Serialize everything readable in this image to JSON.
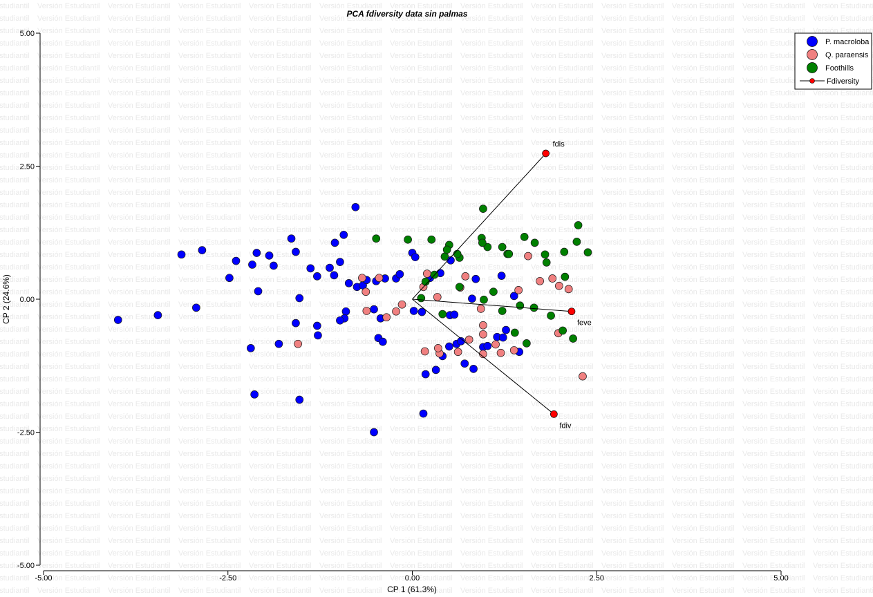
{
  "watermark_text": "Versión Estudiantil",
  "chart_data": {
    "type": "scatter",
    "title": "PCA fdiversity data sin palmas",
    "xlabel": "CP 1 (61.3%)",
    "ylabel": "CP 2 (24.6%)",
    "xlim": [
      -5,
      5
    ],
    "ylim": [
      -5,
      5
    ],
    "x_ticks": [
      -5,
      -2.5,
      0,
      2.5,
      5
    ],
    "y_ticks": [
      -5,
      -2.5,
      0,
      2.5,
      5
    ],
    "x_tick_labels": [
      "-5.00",
      "-2.50",
      "0.00",
      "2.50",
      "5.00"
    ],
    "y_tick_labels": [
      "-5.00",
      "-2.50",
      "0.00",
      "2.50",
      "5.00"
    ],
    "grid": false,
    "legend_position": "top-right",
    "series": [
      {
        "name": "P. macroloba",
        "color": "#0000ff",
        "points": [
          [
            -3.99,
            -0.39
          ],
          [
            -3.45,
            -0.3
          ],
          [
            -2.93,
            -0.16
          ],
          [
            -3.13,
            0.84
          ],
          [
            -2.85,
            0.92
          ],
          [
            -2.48,
            0.4
          ],
          [
            -2.39,
            0.72
          ],
          [
            -2.17,
            0.65
          ],
          [
            -2.11,
            0.87
          ],
          [
            -2.09,
            0.15
          ],
          [
            -1.88,
            0.63
          ],
          [
            -1.94,
            0.82
          ],
          [
            -1.64,
            1.14
          ],
          [
            -1.58,
            0.89
          ],
          [
            -1.53,
            0.02
          ],
          [
            -1.38,
            0.58
          ],
          [
            -1.29,
            0.43
          ],
          [
            -1.06,
            0.45
          ],
          [
            -1.12,
            0.59
          ],
          [
            -1.05,
            1.06
          ],
          [
            -0.93,
            1.21
          ],
          [
            -0.77,
            1.73
          ],
          [
            -0.98,
            0.7
          ],
          [
            -0.86,
            0.3
          ],
          [
            -0.75,
            0.23
          ],
          [
            -0.67,
            0.26
          ],
          [
            -0.62,
            0.36
          ],
          [
            -0.49,
            0.34
          ],
          [
            -0.37,
            0.39
          ],
          [
            -0.22,
            0.39
          ],
          [
            -0.17,
            0.47
          ],
          [
            0.0,
            0.87
          ],
          [
            0.04,
            0.79
          ],
          [
            0.24,
            0.4
          ],
          [
            0.38,
            0.49
          ],
          [
            0.02,
            -0.22
          ],
          [
            0.13,
            -0.24
          ],
          [
            -0.52,
            -0.19
          ],
          [
            -0.9,
            -0.23
          ],
          [
            -0.92,
            -0.36
          ],
          [
            -0.98,
            -0.4
          ],
          [
            -0.43,
            -0.36
          ],
          [
            -0.46,
            -0.73
          ],
          [
            -0.4,
            -0.8
          ],
          [
            -1.29,
            -0.5
          ],
          [
            -1.28,
            -0.68
          ],
          [
            -1.81,
            -0.84
          ],
          [
            -2.19,
            -0.92
          ],
          [
            -1.58,
            -0.45
          ],
          [
            -2.14,
            -1.79
          ],
          [
            -1.53,
            -1.89
          ],
          [
            -0.52,
            -2.5
          ],
          [
            0.15,
            -2.15
          ],
          [
            0.18,
            -1.41
          ],
          [
            0.32,
            -1.33
          ],
          [
            0.41,
            -1.07
          ],
          [
            0.5,
            -0.89
          ],
          [
            0.6,
            -0.84
          ],
          [
            0.66,
            -0.79
          ],
          [
            0.71,
            -1.21
          ],
          [
            0.83,
            -1.31
          ],
          [
            0.96,
            -0.9
          ],
          [
            1.02,
            -0.88
          ],
          [
            1.15,
            -0.71
          ],
          [
            1.23,
            -0.72
          ],
          [
            1.27,
            -0.58
          ],
          [
            1.45,
            -0.99
          ],
          [
            0.51,
            -0.3
          ],
          [
            0.57,
            -0.29
          ],
          [
            0.81,
            0.01
          ],
          [
            0.86,
            0.38
          ],
          [
            1.21,
            0.44
          ],
          [
            1.38,
            0.06
          ],
          [
            0.52,
            0.73
          ]
        ]
      },
      {
        "name": "Q. paraensis",
        "color": "#f08080",
        "points": [
          [
            -1.55,
            -0.84
          ],
          [
            -0.62,
            -0.22
          ],
          [
            -0.63,
            0.14
          ],
          [
            -0.68,
            0.4
          ],
          [
            -0.45,
            0.4
          ],
          [
            -0.35,
            -0.34
          ],
          [
            -0.22,
            -0.23
          ],
          [
            -0.14,
            -0.1
          ],
          [
            0.15,
            0.23
          ],
          [
            0.2,
            0.48
          ],
          [
            0.34,
            0.04
          ],
          [
            0.65,
            0.22
          ],
          [
            0.72,
            0.43
          ],
          [
            0.93,
            -0.18
          ],
          [
            0.96,
            -0.49
          ],
          [
            0.96,
            -0.66
          ],
          [
            0.96,
            -1.03
          ],
          [
            0.77,
            -0.76
          ],
          [
            1.13,
            -0.85
          ],
          [
            1.2,
            -1.01
          ],
          [
            1.38,
            -0.96
          ],
          [
            1.44,
            0.17
          ],
          [
            1.57,
            0.81
          ],
          [
            1.73,
            0.34
          ],
          [
            1.9,
            0.39
          ],
          [
            1.99,
            0.25
          ],
          [
            2.12,
            0.19
          ],
          [
            1.98,
            -0.64
          ],
          [
            2.31,
            -1.45
          ],
          [
            0.37,
            -1.02
          ],
          [
            0.62,
            -0.99
          ],
          [
            0.35,
            -0.92
          ],
          [
            0.17,
            -0.98
          ]
        ]
      },
      {
        "name": "Foothills",
        "color": "#008000",
        "points": [
          [
            -0.49,
            1.14
          ],
          [
            -0.06,
            1.12
          ],
          [
            0.26,
            1.12
          ],
          [
            0.44,
            0.8
          ],
          [
            0.5,
            1.02
          ],
          [
            0.96,
            1.7
          ],
          [
            0.94,
            1.15
          ],
          [
            1.22,
            0.98
          ],
          [
            1.29,
            0.85
          ],
          [
            1.31,
            0.85
          ],
          [
            1.02,
            0.98
          ],
          [
            0.47,
            0.93
          ],
          [
            0.64,
            0.23
          ],
          [
            0.64,
            0.78
          ],
          [
            0.61,
            0.85
          ],
          [
            0.95,
            1.06
          ],
          [
            1.52,
            1.17
          ],
          [
            1.66,
            1.06
          ],
          [
            1.8,
            0.84
          ],
          [
            1.82,
            0.69
          ],
          [
            2.06,
            0.89
          ],
          [
            2.07,
            0.42
          ],
          [
            2.23,
            1.08
          ],
          [
            2.25,
            1.39
          ],
          [
            2.38,
            0.88
          ],
          [
            1.46,
            -0.12
          ],
          [
            1.1,
            0.14
          ],
          [
            1.22,
            -0.22
          ],
          [
            1.39,
            -0.63
          ],
          [
            1.55,
            -0.83
          ],
          [
            2.04,
            -0.59
          ],
          [
            2.18,
            -0.74
          ],
          [
            1.65,
            -0.16
          ],
          [
            1.88,
            -0.31
          ],
          [
            0.97,
            -0.01
          ],
          [
            0.41,
            -0.28
          ],
          [
            0.12,
            0.02
          ],
          [
            0.18,
            0.33
          ],
          [
            0.3,
            0.46
          ]
        ]
      }
    ],
    "vectors": {
      "name": "Fdiversity",
      "color": "#ff0000",
      "items": [
        {
          "label": "fdis",
          "x": 1.81,
          "y": 2.74
        },
        {
          "label": "feve",
          "x": 2.16,
          "y": -0.23
        },
        {
          "label": "fdiv",
          "x": 1.92,
          "y": -2.16
        }
      ]
    }
  }
}
